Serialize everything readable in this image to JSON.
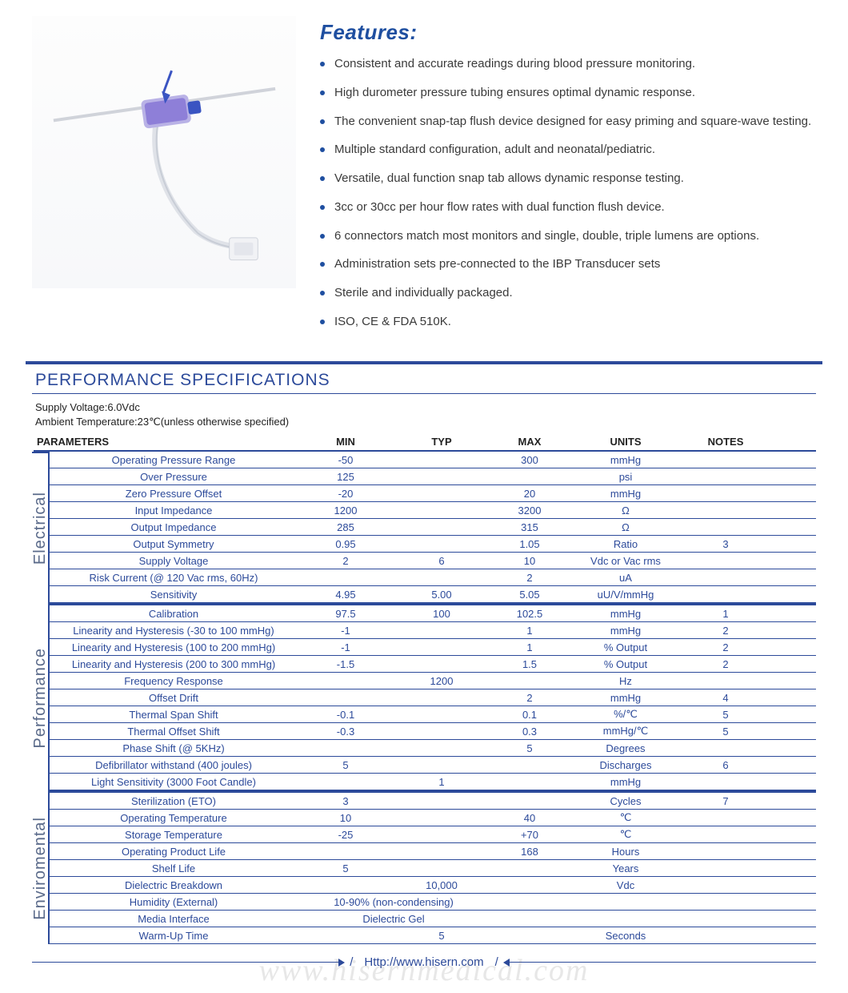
{
  "features": {
    "heading": "Features:",
    "items": [
      "Consistent and accurate readings during blood pressure monitoring.",
      "High durometer pressure tubing ensures optimal dynamic response.",
      "The convenient snap-tap flush device designed for easy priming and square-wave testing.",
      "Multiple standard configuration, adult and neonatal/pediatric.",
      "Versatile, dual function snap tab allows dynamic response testing.",
      "3cc or 30cc per hour flow rates with dual function flush device.",
      "6 connectors match most monitors and single, double, triple lumens are options.",
      "Administration sets pre-connected to the IBP Transducer sets",
      "Sterile and individually packaged.",
      "ISO, CE & FDA 510K."
    ]
  },
  "spec": {
    "title": "PERFORMANCE SPECIFICATIONS",
    "conditions_1": "Supply Voltage:6.0Vdc",
    "conditions_2": "Ambient Temperature:23℃(unless otherwise specified)",
    "columns": [
      "PARAMETERS",
      "MIN",
      "TYP",
      "MAX",
      "UNITS",
      "NOTES"
    ],
    "sections": [
      {
        "label": "Electrical",
        "rows": [
          {
            "p": "Operating Pressure Range",
            "min": "-50",
            "typ": "",
            "max": "300",
            "u": "mmHg",
            "n": ""
          },
          {
            "p": "Over  Pressure",
            "min": "125",
            "typ": "",
            "max": "",
            "u": "psi",
            "n": ""
          },
          {
            "p": "Zero Pressure Offset",
            "min": "-20",
            "typ": "",
            "max": "20",
            "u": "mmHg",
            "n": ""
          },
          {
            "p": "Input Impedance",
            "min": "1200",
            "typ": "",
            "max": "3200",
            "u": "Ω",
            "n": ""
          },
          {
            "p": "Output Impedance",
            "min": "285",
            "typ": "",
            "max": "315",
            "u": "Ω",
            "n": ""
          },
          {
            "p": "Output Symmetry",
            "min": "0.95",
            "typ": "",
            "max": "1.05",
            "u": "Ratio",
            "n": "3"
          },
          {
            "p": "Supply Voltage",
            "min": "2",
            "typ": "6",
            "max": "10",
            "u": "Vdc or Vac rms",
            "n": ""
          },
          {
            "p": "Risk Current (@ 120 Vac rms, 60Hz)",
            "min": "",
            "typ": "",
            "max": "2",
            "u": "uA",
            "n": ""
          },
          {
            "p": "Sensitivity",
            "min": "4.95",
            "typ": "5.00",
            "max": "5.05",
            "u": "uU/V/mmHg",
            "n": ""
          }
        ]
      },
      {
        "label": "Performance",
        "rows": [
          {
            "p": "Calibration",
            "min": "97.5",
            "typ": "100",
            "max": "102.5",
            "u": "mmHg",
            "n": "1"
          },
          {
            "p": "Linearity and Hysteresis (-30 to 100 mmHg)",
            "min": "-1",
            "typ": "",
            "max": "1",
            "u": "mmHg",
            "n": "2"
          },
          {
            "p": "Linearity and Hysteresis (100 to 200 mmHg)",
            "min": "-1",
            "typ": "",
            "max": "1",
            "u": "% Output",
            "n": "2"
          },
          {
            "p": "Linearity and Hysteresis (200 to 300 mmHg)",
            "min": "-1.5",
            "typ": "",
            "max": "1.5",
            "u": "% Output",
            "n": "2"
          },
          {
            "p": "Frequency Response",
            "min": "",
            "typ": "1200",
            "max": "",
            "u": "Hz",
            "n": ""
          },
          {
            "p": "Offset Drift",
            "min": "",
            "typ": "",
            "max": "2",
            "u": "mmHg",
            "n": "4"
          },
          {
            "p": "Thermal Span Shift",
            "min": "-0.1",
            "typ": "",
            "max": "0.1",
            "u": "%/℃",
            "n": "5"
          },
          {
            "p": "Thermal Offset Shift",
            "min": "-0.3",
            "typ": "",
            "max": "0.3",
            "u": "mmHg/℃",
            "n": "5"
          },
          {
            "p": "Phase Shift (@ 5KHz)",
            "min": "",
            "typ": "",
            "max": "5",
            "u": "Degrees",
            "n": ""
          },
          {
            "p": "Defibrillator withstand (400 joules)",
            "min": "5",
            "typ": "",
            "max": "",
            "u": "Discharges",
            "n": "6"
          },
          {
            "p": "Light Sensitivity (3000 Foot Candle)",
            "min": "",
            "typ": "1",
            "max": "",
            "u": "mmHg",
            "n": ""
          }
        ]
      },
      {
        "label": "Enviromental",
        "rows": [
          {
            "p": "Sterilization (ETO)",
            "min": "3",
            "typ": "",
            "max": "",
            "u": "Cycles",
            "n": "7"
          },
          {
            "p": "Operating Temperature",
            "min": "10",
            "typ": "",
            "max": "40",
            "u": "℃",
            "n": ""
          },
          {
            "p": "Storage Temperature",
            "min": "-25",
            "typ": "",
            "max": "+70",
            "u": "℃",
            "n": ""
          },
          {
            "p": "Operating Product Life",
            "min": "",
            "typ": "",
            "max": "168",
            "u": "Hours",
            "n": ""
          },
          {
            "p": "Shelf Life",
            "min": "5",
            "typ": "",
            "max": "",
            "u": "Years",
            "n": ""
          },
          {
            "p": "Dielectric Breakdown",
            "min": "",
            "typ": "10,000",
            "max": "",
            "u": "Vdc",
            "n": ""
          },
          {
            "p": "Humidity (External)",
            "min": "10-90% (non-condensing)",
            "typ": "",
            "max": "",
            "u": "",
            "n": "",
            "wide": true
          },
          {
            "p": "Media Interface",
            "min": "Dielectric Gel",
            "typ": "",
            "max": "",
            "u": "",
            "n": "",
            "wide": true
          },
          {
            "p": "Warm-Up Time",
            "min": "",
            "typ": "5",
            "max": "",
            "u": "Seconds",
            "n": ""
          }
        ]
      }
    ]
  },
  "footer": {
    "url": "Http://www.hisern.com"
  },
  "watermark": "www.hisernmedical.com",
  "colors": {
    "brand": "#2c4a9a",
    "heading": "#1f4fa0",
    "text": "#333333",
    "side_label": "#5a6a8a"
  }
}
